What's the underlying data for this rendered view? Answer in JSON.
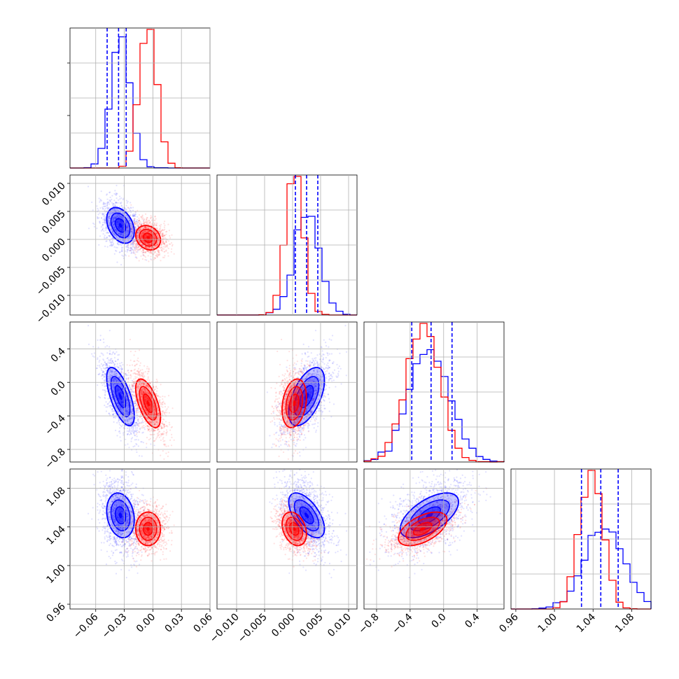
{
  "chart_data": {
    "type": "corner",
    "parameters": 4,
    "grid": true,
    "ticks": {
      "p0": [
        "−0.06",
        "−0.03",
        "0.00",
        "0.03",
        "0.06"
      ],
      "p1": [
        "−0.010",
        "−0.005",
        "0.000",
        "0.005",
        "0.010"
      ],
      "p2": [
        "−0.8",
        "−0.4",
        "0.0",
        "0.4"
      ],
      "p3": [
        "0.96",
        "1.00",
        "1.04",
        "1.08"
      ]
    },
    "ranges": {
      "p0": [
        -0.087,
        0.06
      ],
      "p1": [
        -0.0135,
        0.0115
      ],
      "p2": [
        -0.95,
        0.72
      ],
      "p3": [
        0.955,
        1.1
      ]
    },
    "tick_values": {
      "p0": [
        -0.06,
        -0.03,
        0.0,
        0.03,
        0.06
      ],
      "p1": [
        -0.01,
        -0.005,
        0.0,
        0.005,
        0.01
      ],
      "p2": [
        -0.8,
        -0.4,
        0.0,
        0.4
      ],
      "p3": [
        0.96,
        1.0,
        1.04,
        1.08
      ]
    },
    "series": [
      {
        "color": "#0000ff",
        "mean": [
          -0.034,
          0.0025,
          -0.17,
          1.052
        ],
        "sd": [
          0.01,
          0.0022,
          0.24,
          0.016
        ],
        "corr": [
          [
            1,
            -0.35,
            -0.65,
            -0.2
          ],
          [
            -0.35,
            1,
            0.55,
            -0.6
          ],
          [
            -0.65,
            0.55,
            1,
            0.6
          ],
          [
            -0.2,
            -0.6,
            0.6,
            1
          ]
        ],
        "quantiles": {
          "p0": [
            -0.048,
            -0.036,
            -0.028
          ],
          "p1": [
            0.0005,
            0.0025,
            0.0045
          ],
          "p2": [
            -0.38,
            -0.15,
            0.1
          ],
          "p3": [
            1.028,
            1.048,
            1.066
          ]
        }
      },
      {
        "color": "#ff0000",
        "mean": [
          -0.005,
          0.0003,
          -0.25,
          1.038
        ],
        "sd": [
          0.009,
          0.0015,
          0.2,
          0.012
        ],
        "corr": [
          [
            1,
            -0.2,
            -0.6,
            0.0
          ],
          [
            -0.2,
            1,
            0.25,
            -0.3
          ],
          [
            -0.6,
            0.25,
            1,
            0.55
          ],
          [
            0.0,
            -0.3,
            0.55,
            1
          ]
        ]
      }
    ]
  }
}
